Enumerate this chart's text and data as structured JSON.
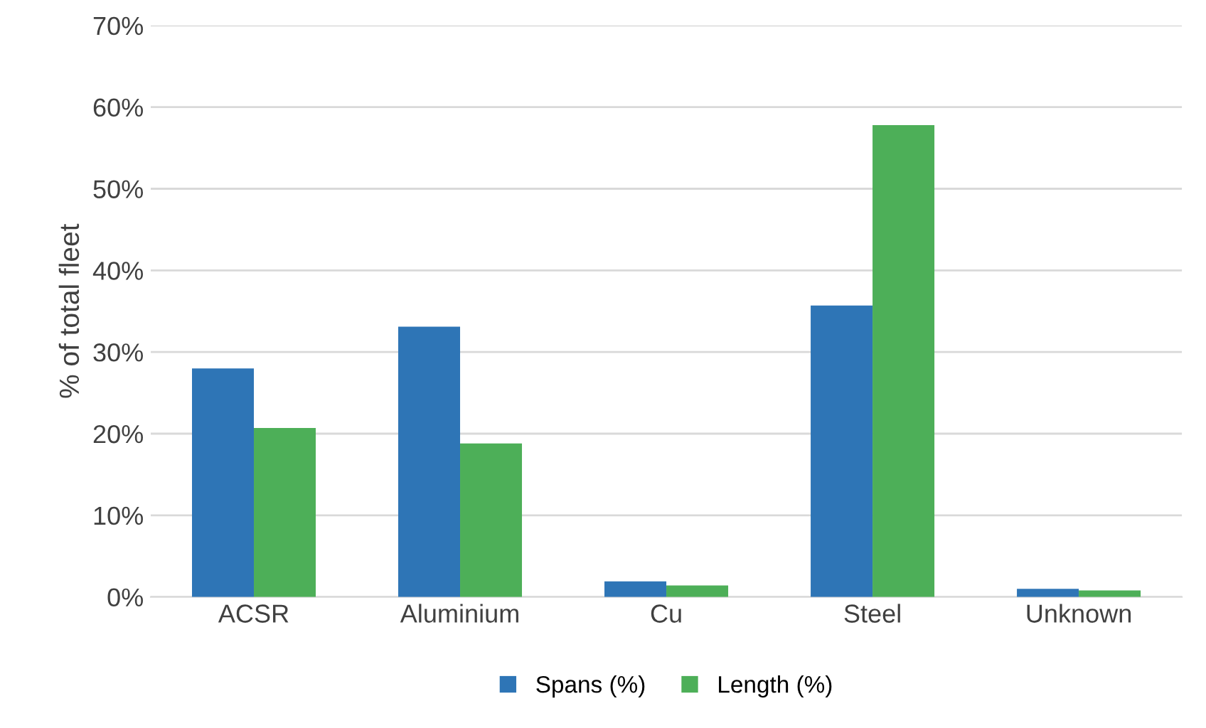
{
  "chart_data": {
    "type": "bar",
    "ylabel": "% of total fleet",
    "categories": [
      "ACSR",
      "Aluminium",
      "Cu",
      "Steel",
      "Unknown"
    ],
    "series": [
      {
        "name": "Spans (%)",
        "color": "#2e75b6",
        "values": [
          28.0,
          33.1,
          1.9,
          35.7,
          1.0
        ]
      },
      {
        "name": "Length (%)",
        "color": "#4daf58",
        "values": [
          20.7,
          18.8,
          1.4,
          57.8,
          0.8
        ]
      }
    ],
    "ylim": [
      0,
      70
    ],
    "yticks": [
      {
        "value": 0,
        "label": "0%"
      },
      {
        "value": 10,
        "label": "10%"
      },
      {
        "value": 20,
        "label": "20%"
      },
      {
        "value": 30,
        "label": "30%"
      },
      {
        "value": 40,
        "label": "40%"
      },
      {
        "value": 50,
        "label": "50%"
      },
      {
        "value": 60,
        "label": "60%"
      },
      {
        "value": 70,
        "label": "70%"
      }
    ],
    "grid": "y",
    "legend": "bottom"
  }
}
